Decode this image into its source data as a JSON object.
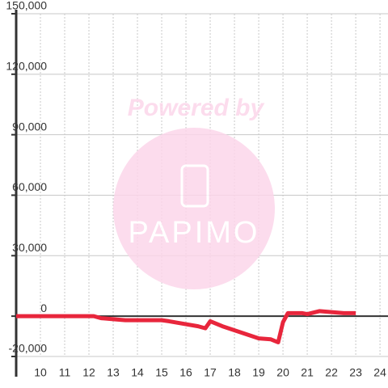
{
  "chart_data": {
    "type": "line",
    "watermark": {
      "title": "Powered by",
      "brand": "PAPIMO"
    },
    "x": [
      9,
      10,
      11,
      12,
      12.2,
      12.5,
      13,
      13.5,
      14,
      15,
      15.3,
      16,
      16.5,
      16.8,
      17,
      17.5,
      18,
      18.5,
      19,
      19.5,
      19.8,
      20,
      20.2,
      20.8,
      21,
      21.5,
      22,
      22.5,
      23
    ],
    "series": [
      {
        "color": "#e8263c",
        "values": [
          0,
          0,
          0,
          0,
          0,
          -1000,
          -1500,
          -2000,
          -2000,
          -2000,
          -2500,
          -4000,
          -5000,
          -6000,
          -2500,
          -5000,
          -7000,
          -9000,
          -11000,
          -11500,
          -13000,
          -3000,
          1500,
          1500,
          1000,
          2500,
          2000,
          1500,
          1500
        ]
      }
    ],
    "xlim": [
      9,
      24.33
    ],
    "ylim": [
      -20000,
      150000
    ],
    "xticks": [
      10,
      11,
      12,
      13,
      14,
      15,
      16,
      17,
      18,
      19,
      20,
      21,
      22,
      23,
      24
    ],
    "yticks": [
      {
        "value": -20000,
        "label": "-20,000"
      },
      0,
      {
        "value": 30000,
        "label": "30,000"
      },
      {
        "value": 60000,
        "label": "60,000"
      },
      {
        "value": 90000,
        "label": "90,000"
      },
      {
        "value": 120000,
        "label": "120,000"
      },
      {
        "value": 150000,
        "label": "150,000"
      }
    ],
    "grid": true
  }
}
